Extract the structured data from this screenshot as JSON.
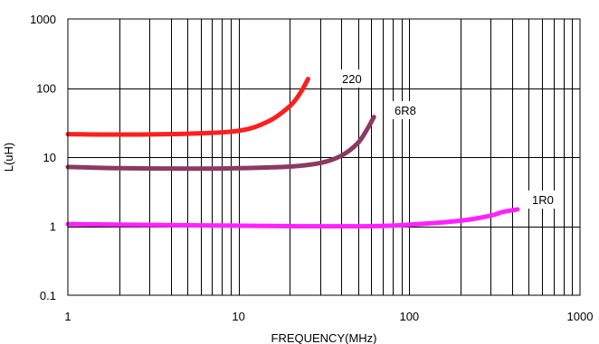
{
  "chart_data": {
    "type": "line",
    "title": "",
    "xlabel": "FREQUENCY(MHz)",
    "ylabel": "L(uH)",
    "x_scale": "log",
    "y_scale": "log",
    "xlim": [
      1,
      1000
    ],
    "ylim": [
      0.1,
      1000
    ],
    "x_ticks": [
      1,
      10,
      100,
      1000
    ],
    "x_tick_labels": [
      "1",
      "10",
      "100",
      "1000"
    ],
    "y_ticks": [
      0.1,
      1,
      10,
      100,
      1000
    ],
    "y_tick_labels": [
      "0.1",
      "1",
      "10",
      "100",
      "1000"
    ],
    "grid": true,
    "legend": "none",
    "series": [
      {
        "name": "220",
        "color": "#ff1f1f",
        "points": [
          [
            1,
            21.5
          ],
          [
            2,
            21.2
          ],
          [
            5,
            21.8
          ],
          [
            10,
            24
          ],
          [
            15,
            33
          ],
          [
            20,
            55
          ],
          [
            23,
            85
          ],
          [
            25.5,
            135
          ]
        ]
      },
      {
        "name": "6R8",
        "color": "#8b3a62",
        "points": [
          [
            1,
            7.2
          ],
          [
            2,
            6.9
          ],
          [
            5,
            6.8
          ],
          [
            10,
            6.9
          ],
          [
            20,
            7.3
          ],
          [
            30,
            8.2
          ],
          [
            40,
            10.5
          ],
          [
            50,
            16
          ],
          [
            57,
            26
          ],
          [
            62,
            38
          ]
        ]
      },
      {
        "name": "1R0",
        "color": "#ff22ff",
        "points": [
          [
            1,
            1.07
          ],
          [
            5,
            1.03
          ],
          [
            20,
            1.0
          ],
          [
            60,
            1.0
          ],
          [
            100,
            1.05
          ],
          [
            200,
            1.2
          ],
          [
            300,
            1.42
          ],
          [
            350,
            1.6
          ],
          [
            430,
            1.75
          ]
        ]
      }
    ]
  }
}
